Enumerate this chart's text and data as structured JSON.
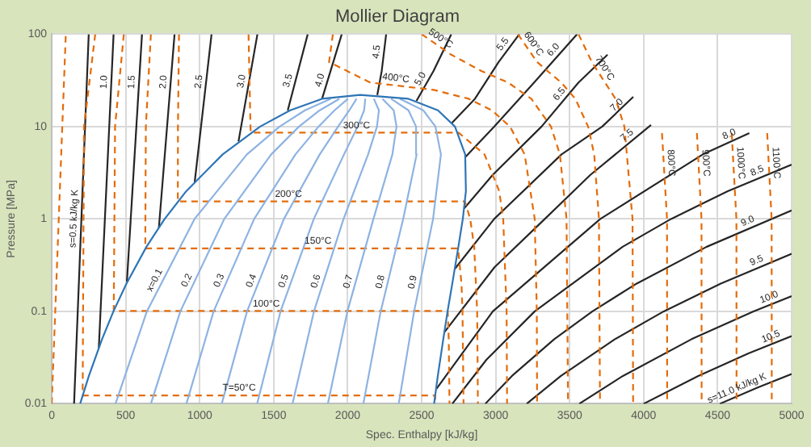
{
  "chart_data": {
    "type": "line",
    "title": "Mollier Diagram",
    "xlabel": "Spec. Enthalpy [kJ/kg]",
    "ylabel": "Pressure [MPa]",
    "xlim": [
      0,
      5000
    ],
    "xticks": [
      0,
      500,
      1000,
      1500,
      2000,
      2500,
      3000,
      3500,
      4000,
      4500,
      5000
    ],
    "ylim": [
      0.01,
      100
    ],
    "yticks": [
      0.01,
      0.1,
      1,
      10,
      100
    ],
    "log": "y",
    "grid": true,
    "series": [
      {
        "color": "#2e75b6",
        "line_style": "solid",
        "x": [
          192,
          251,
          340,
          417,
          505,
          640,
          763,
          909,
          1155,
          1408,
          1611,
          1827,
          2084,
          2410,
          2610,
          2725,
          2794,
          2799,
          2778,
          2748,
          2707,
          2675,
          2646,
          2609,
          2584
        ],
        "values": [
          0.01,
          0.02,
          0.05,
          0.1,
          0.2,
          0.5,
          1,
          2,
          5,
          10,
          15,
          20,
          22,
          20,
          15,
          10,
          5,
          2,
          1,
          0.5,
          0.2,
          0.1,
          0.05,
          0.02,
          0.01
        ]
      },
      {
        "color": "#8db3e2",
        "line_style": "solid",
        "x": [
          431,
          643,
          965,
          1319,
          1540,
          1711,
          1885
        ],
        "values": [
          0.01,
          0.1,
          1,
          5,
          10,
          15,
          20
        ]
      },
      {
        "color": "#8db3e2",
        "line_style": "solid",
        "x": [
          670,
          869,
          1166,
          1483,
          1671,
          1811,
          1944
        ],
        "values": [
          0.01,
          0.1,
          1,
          5,
          10,
          15,
          20
        ]
      },
      {
        "color": "#8db3e2",
        "line_style": "solid",
        "x": [
          910,
          1094,
          1368,
          1647,
          1803,
          1911,
          2002
        ],
        "values": [
          0.01,
          0.1,
          1,
          5,
          10,
          15,
          20
        ]
      },
      {
        "color": "#8db3e2",
        "line_style": "solid",
        "x": [
          1149,
          1320,
          1569,
          1811,
          1935,
          2011,
          2060
        ],
        "values": [
          0.01,
          0.1,
          1,
          5,
          10,
          15,
          20
        ]
      },
      {
        "color": "#8db3e2",
        "line_style": "solid",
        "x": [
          1388,
          1546,
          1771,
          1975,
          2067,
          2111,
          2119
        ],
        "values": [
          0.01,
          0.1,
          1,
          5,
          10,
          15,
          20
        ]
      },
      {
        "color": "#8db3e2",
        "line_style": "solid",
        "x": [
          1627,
          1772,
          1972,
          2138,
          2198,
          2211,
          2177
        ],
        "values": [
          0.01,
          0.1,
          1,
          5,
          10,
          15,
          20
        ]
      },
      {
        "color": "#8db3e2",
        "line_style": "solid",
        "x": [
          1866,
          1998,
          2174,
          2302,
          2330,
          2311,
          2235
        ],
        "values": [
          0.01,
          0.1,
          1,
          5,
          10,
          15,
          20
        ]
      },
      {
        "color": "#8db3e2",
        "line_style": "solid",
        "x": [
          2106,
          2223,
          2375,
          2466,
          2462,
          2411,
          2293
        ],
        "values": [
          0.01,
          0.1,
          1,
          5,
          10,
          15,
          20
        ]
      },
      {
        "color": "#8db3e2",
        "line_style": "solid",
        "x": [
          2345,
          2449,
          2577,
          2630,
          2593,
          2511,
          2352
        ],
        "values": [
          0.01,
          0.1,
          1,
          5,
          10,
          15,
          20
        ]
      },
      {
        "color": "#e46c0a",
        "line_style": "dashed",
        "x": [
          0,
          95
        ],
        "values": [
          0.01,
          100
        ]
      },
      {
        "color": "#e46c0a",
        "line_style": "dashed",
        "x": [
          294,
          218,
          209,
          2591,
          2592
        ],
        "values": [
          100,
          10,
          0.0123,
          0.0123,
          0.01
        ]
      },
      {
        "color": "#e46c0a",
        "line_style": "dashed",
        "x": [
          487,
          428,
          419,
          2676,
          2683,
          2688
        ],
        "values": [
          100,
          10,
          0.101,
          0.101,
          0.05,
          0.01
        ]
      },
      {
        "color": "#e46c0a",
        "line_style": "dashed",
        "x": [
          670,
          636,
          632,
          2746,
          2769,
          2776,
          2783
        ],
        "values": [
          100,
          10,
          0.48,
          0.48,
          0.2,
          0.1,
          0.01
        ]
      },
      {
        "color": "#e46c0a",
        "line_style": "dashed",
        "x": [
          860,
          853,
          852,
          2792,
          2828,
          2855,
          2875,
          2880
        ],
        "values": [
          100,
          10,
          1.55,
          1.55,
          1,
          0.5,
          0.1,
          0.01
        ]
      },
      {
        "color": "#e46c0a",
        "line_style": "dashed",
        "x": [
          1330,
          1343,
          1345,
          2749,
          2925,
          3024,
          3051,
          3074,
          3077
        ],
        "values": [
          100,
          10,
          8.6,
          8.6,
          5,
          2,
          1,
          0.1,
          0.01
        ]
      },
      {
        "color": "#e46c0a",
        "line_style": "dashed",
        "x": [
          1900,
          1874,
          2152,
          2580,
          2818,
          2975,
          3097,
          3196,
          3264,
          3278,
          3280
        ],
        "values": [
          100,
          50,
          30,
          25,
          20,
          15,
          10,
          5,
          1,
          0.1,
          0.01
        ]
      },
      {
        "color": "#e46c0a",
        "line_style": "dashed",
        "x": [
          2500,
          2700,
          2903,
          3084,
          3241,
          3374,
          3434,
          3479,
          3489
        ],
        "values": [
          100,
          60,
          40,
          30,
          20,
          10,
          5,
          1,
          0.01
        ]
      },
      {
        "color": "#e46c0a",
        "line_style": "dashed",
        "x": [
          3150,
          3280,
          3350,
          3443,
          3538,
          3625,
          3666,
          3698,
          3705
        ],
        "values": [
          100,
          50,
          40,
          30,
          20,
          10,
          5,
          1,
          0.01
        ]
      },
      {
        "color": "#e46c0a",
        "line_style": "dashed",
        "x": [
          3560,
          3650,
          3739,
          3810,
          3870,
          3925,
          3929
        ],
        "values": [
          100,
          50,
          30,
          20,
          10,
          1,
          0.01
        ]
      },
      {
        "color": "#e46c0a",
        "line_style": "dashed",
        "x": [
          4124,
          4158,
          4159
        ],
        "values": [
          8.5,
          1,
          0.01
        ]
      },
      {
        "color": "#e46c0a",
        "line_style": "dashed",
        "x": [
          4360,
          4391,
          4392
        ],
        "values": [
          8.5,
          1,
          0.01
        ]
      },
      {
        "color": "#e46c0a",
        "line_style": "dashed",
        "x": [
          4595,
          4627,
          4628
        ],
        "values": [
          8.5,
          1,
          0.01
        ]
      },
      {
        "color": "#e46c0a",
        "line_style": "dashed",
        "x": [
          4835,
          4865,
          4866
        ],
        "values": [
          8.5,
          1,
          0.01
        ]
      },
      {
        "color": "#262626",
        "line_style": "solid",
        "x": [
          151,
          250
        ],
        "values": [
          0.01,
          100
        ]
      },
      {
        "color": "#262626",
        "line_style": "solid",
        "x": [
          318,
          418
        ],
        "values": [
          0.04,
          100
        ]
      },
      {
        "color": "#262626",
        "line_style": "solid",
        "x": [
          508,
          610
        ],
        "values": [
          0.21,
          100
        ]
      },
      {
        "color": "#262626",
        "line_style": "solid",
        "x": [
          724,
          830
        ],
        "values": [
          0.8,
          100
        ]
      },
      {
        "color": "#262626",
        "line_style": "solid",
        "x": [
          966,
          1080
        ],
        "values": [
          2.5,
          100
        ]
      },
      {
        "color": "#262626",
        "line_style": "solid",
        "x": [
          1262,
          1390
        ],
        "values": [
          6.9,
          100
        ]
      },
      {
        "color": "#262626",
        "line_style": "solid",
        "x": [
          1595,
          1730
        ],
        "values": [
          15,
          100
        ]
      },
      {
        "color": "#262626",
        "line_style": "solid",
        "x": [
          1827,
          1960
        ],
        "values": [
          20,
          100
        ]
      },
      {
        "color": "#262626",
        "line_style": "solid",
        "x": [
          2200,
          2230,
          2260
        ],
        "values": [
          22,
          40,
          100
        ]
      },
      {
        "color": "#262626",
        "line_style": "solid",
        "x": [
          2465,
          2580,
          2700
        ],
        "values": [
          19,
          40,
          100
        ]
      },
      {
        "color": "#262626",
        "line_style": "solid",
        "x": [
          2705,
          2860,
          3020,
          3160
        ],
        "values": [
          11,
          20,
          50,
          100
        ]
      },
      {
        "color": "#262626",
        "line_style": "solid",
        "x": [
          2796,
          2990,
          3260,
          3550
        ],
        "values": [
          4.7,
          10,
          30,
          100
        ]
      },
      {
        "color": "#262626",
        "line_style": "solid",
        "x": [
          2787,
          2980,
          3310,
          3560,
          3756
        ],
        "values": [
          1.3,
          3,
          10,
          30,
          60
        ]
      },
      {
        "color": "#262626",
        "line_style": "solid",
        "x": [
          2725,
          2990,
          3445,
          3720,
          3930
        ],
        "values": [
          0.29,
          1,
          5,
          10,
          21
        ]
      },
      {
        "color": "#262626",
        "line_style": "solid",
        "x": [
          2655,
          2992,
          3332,
          3640,
          4050
        ],
        "values": [
          0.06,
          0.3,
          1,
          3,
          10.4
        ]
      },
      {
        "color": "#262626",
        "line_style": "solid",
        "x": [
          2600,
          2981,
          3707,
          4400,
          4714
        ],
        "values": [
          0.0145,
          0.1,
          1,
          5,
          8.5
        ]
      },
      {
        "color": "#262626",
        "line_style": "solid",
        "x": [
          2707,
          2938,
          3264,
          3858,
          4185,
          4568,
          5000
        ],
        "values": [
          0.01,
          0.03,
          0.1,
          0.5,
          1,
          2,
          3.88
        ]
      },
      {
        "color": "#262626",
        "line_style": "solid",
        "x": [
          2930,
          3110,
          3396,
          3654,
          3953,
          4426,
          5000
        ],
        "values": [
          0.01,
          0.02,
          0.05,
          0.1,
          0.2,
          0.5,
          1.24
        ]
      },
      {
        "color": "#262626",
        "line_style": "solid",
        "x": [
          3210,
          3441,
          3806,
          4136,
          4521,
          5000
        ],
        "values": [
          0.01,
          0.02,
          0.05,
          0.1,
          0.2,
          0.42
        ]
      },
      {
        "color": "#262626",
        "line_style": "solid",
        "x": [
          3565,
          3860,
          4324,
          4742,
          5000
        ],
        "values": [
          0.01,
          0.02,
          0.05,
          0.1,
          0.146
        ]
      },
      {
        "color": "#262626",
        "line_style": "solid",
        "x": [
          4000,
          4369,
          4708,
          5000
        ],
        "values": [
          0.01,
          0.02,
          0.035,
          0.054
        ]
      },
      {
        "color": "#262626",
        "line_style": "solid",
        "x": [
          4515,
          4771,
          5000
        ],
        "values": [
          0.01,
          0.015,
          0.021
        ]
      }
    ],
    "annotations": [
      {
        "text": "x=0.1",
        "x": 740,
        "y": 0.2
      },
      {
        "text": "0.2",
        "x": 958,
        "y": 0.2
      },
      {
        "text": "0.3",
        "x": 1176,
        "y": 0.2
      },
      {
        "text": "0.4",
        "x": 1395,
        "y": 0.2
      },
      {
        "text": "0.5",
        "x": 1614,
        "y": 0.2
      },
      {
        "text": "0.6",
        "x": 1832,
        "y": 0.2
      },
      {
        "text": "0.7",
        "x": 2051,
        "y": 0.2
      },
      {
        "text": "0.8",
        "x": 2269,
        "y": 0.2
      },
      {
        "text": "0.9",
        "x": 2488,
        "y": 0.2
      },
      {
        "text": "T=50°C",
        "x": 1266,
        "y": 0.0123
      },
      {
        "text": "100°C",
        "x": 1450,
        "y": 0.101
      },
      {
        "text": "150°C",
        "x": 1800,
        "y": 0.48
      },
      {
        "text": "200°C",
        "x": 1600,
        "y": 1.55
      },
      {
        "text": "300°C",
        "x": 2060,
        "y": 8.6
      },
      {
        "text": "400°C",
        "x": 2320,
        "y": 27.9
      },
      {
        "text": "500°C",
        "x": 2600,
        "y": 77.5
      },
      {
        "text": "600°C",
        "x": 3215,
        "y": 70.7
      },
      {
        "text": "700°C",
        "x": 3695,
        "y": 38.7
      },
      {
        "text": "800°C",
        "x": 4136,
        "y": 4
      },
      {
        "text": "900°C",
        "x": 4371,
        "y": 4
      },
      {
        "text": "1000°C",
        "x": 4606,
        "y": 4
      },
      {
        "text": "1100°C",
        "x": 4846,
        "y": 4
      },
      {
        "text": "s=0.5 kJ/kg K",
        "x": 200,
        "y": 1
      },
      {
        "text": "1.0",
        "x": 403,
        "y": 30
      },
      {
        "text": "1.5",
        "x": 590,
        "y": 30
      },
      {
        "text": "2.0",
        "x": 804,
        "y": 30
      },
      {
        "text": "2.5",
        "x": 1043,
        "y": 30
      },
      {
        "text": "3.0",
        "x": 1332,
        "y": 30
      },
      {
        "text": "3.5",
        "x": 1644,
        "y": 30
      },
      {
        "text": "4.0",
        "x": 1860,
        "y": 30
      },
      {
        "text": "4.5",
        "x": 2245,
        "y": 63
      },
      {
        "text": "5.0",
        "x": 2535,
        "y": 30
      },
      {
        "text": "5.5",
        "x": 3088,
        "y": 70
      },
      {
        "text": "6.0",
        "x": 3427,
        "y": 60
      },
      {
        "text": "6.5",
        "x": 3468,
        "y": 20
      },
      {
        "text": "7.0",
        "x": 3854,
        "y": 15
      },
      {
        "text": "7.5",
        "x": 3919,
        "y": 7
      },
      {
        "text": "8.0",
        "x": 4599,
        "y": 7
      },
      {
        "text": "8.5",
        "x": 4787,
        "y": 2.8
      },
      {
        "text": "9.0",
        "x": 4723,
        "y": 0.8
      },
      {
        "text": "9.5",
        "x": 4783,
        "y": 0.3
      },
      {
        "text": "10.0",
        "x": 4866,
        "y": 0.12
      },
      {
        "text": "10.5",
        "x": 4878,
        "y": 0.045
      },
      {
        "text": "s=11.0 kJ/kg K",
        "x": 4650,
        "y": 0.0124
      }
    ]
  }
}
